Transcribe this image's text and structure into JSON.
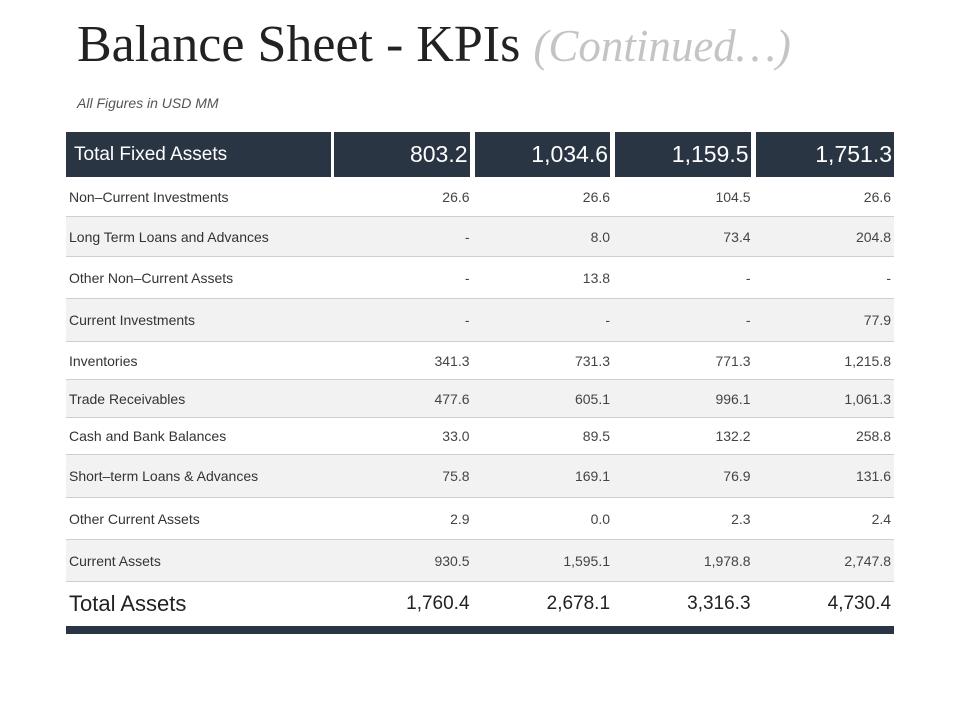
{
  "header": {
    "title": "Balance Sheet - KPIs",
    "title_suffix": "(Continued…)",
    "units": "All Figures in USD MM"
  },
  "table": {
    "top_row": {
      "label": "Total Fixed Assets",
      "values": [
        "803.2",
        "1,034.6",
        "1,159.5",
        "1,751.3"
      ]
    },
    "rows": [
      {
        "label": "Non–Current Investments",
        "values": [
          "26.6",
          "26.6",
          "104.5",
          "26.6"
        ]
      },
      {
        "label": "Long Term Loans and Advances",
        "values": [
          "-",
          "8.0",
          "73.4",
          "204.8"
        ]
      },
      {
        "label": "Other Non–Current Assets",
        "values": [
          "-",
          "13.8",
          "-",
          "-"
        ]
      },
      {
        "label": "Current Investments",
        "values": [
          "-",
          "-",
          "-",
          "77.9"
        ]
      },
      {
        "label": "Inventories",
        "values": [
          "341.3",
          "731.3",
          "771.3",
          "1,215.8"
        ]
      },
      {
        "label": "Trade Receivables",
        "values": [
          "477.6",
          "605.1",
          "996.1",
          "1,061.3"
        ]
      },
      {
        "label": "Cash and Bank Balances",
        "values": [
          "33.0",
          "89.5",
          "132.2",
          "258.8"
        ]
      },
      {
        "label": "Short–term Loans & Advances",
        "values": [
          "75.8",
          "169.1",
          "76.9",
          "131.6"
        ]
      },
      {
        "label": "Other Current Assets",
        "values": [
          "2.9",
          "0.0",
          "2.3",
          "2.4"
        ]
      },
      {
        "label": "Current Assets",
        "values": [
          "930.5",
          "1,595.1",
          "1,978.8",
          "2,747.8"
        ]
      }
    ],
    "total_row": {
      "label": "Total Assets",
      "values": [
        "1,760.4",
        "2,678.1",
        "3,316.3",
        "4,730.4"
      ]
    }
  },
  "colors": {
    "header_bg": "#2a3544",
    "stripe_bg": "#f2f2f2",
    "title_suffix": "#c4c4c4"
  }
}
